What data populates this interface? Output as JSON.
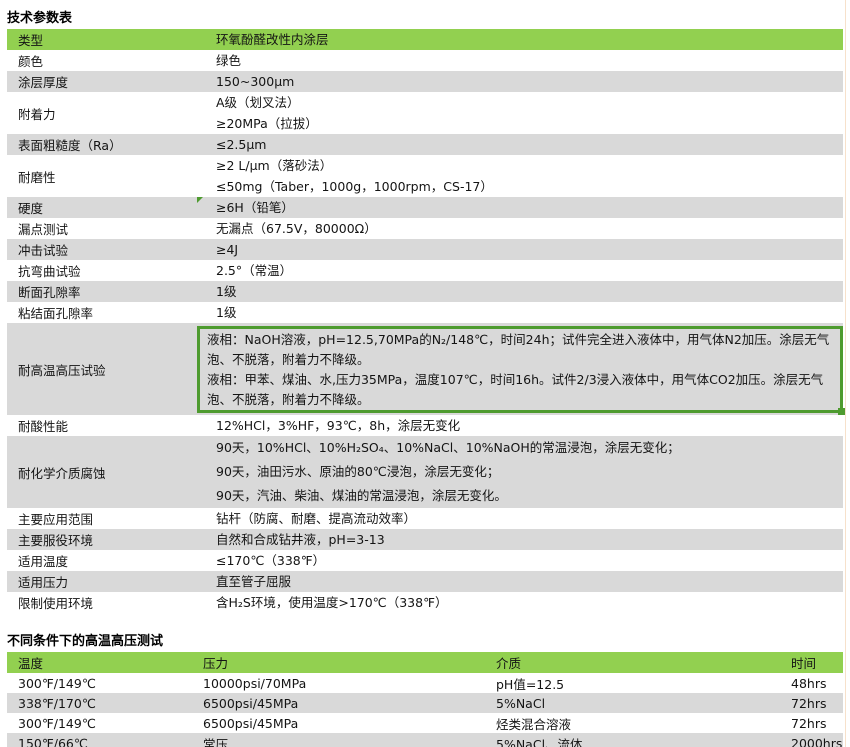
{
  "titles": {
    "spec": "技术参数表",
    "hthp": "不同条件下的高温高压测试"
  },
  "colors": {
    "header_green": "#92D050",
    "stripe_gray": "#D9D9D9",
    "highlight_border_green": "#4E9B2F",
    "page_break_line": "#F7E1CB",
    "text": "#141414"
  },
  "icons": {
    "comment_marker": "green-corner-triangle",
    "selection_handle": "green-square"
  },
  "spec_table": {
    "rows": [
      {
        "label": "类型",
        "lines": [
          "环氧酚醛改性内涂层"
        ]
      },
      {
        "label": "颜色",
        "lines": [
          "绿色"
        ]
      },
      {
        "label": "涂层厚度",
        "lines": [
          "150~300μm"
        ]
      },
      {
        "label": "附着力",
        "lines": [
          "A级（划叉法）",
          "≥20MPa（拉拔）"
        ]
      },
      {
        "label": "表面粗糙度（Ra）",
        "lines": [
          "≤2.5μm"
        ]
      },
      {
        "label": "耐磨性",
        "lines": [
          "≥2 L/μm（落砂法）",
          "≤50mg（Taber，1000g，1000rpm，CS-17）"
        ]
      },
      {
        "label": "硬度",
        "lines": [
          "≥6H（铅笔）"
        ]
      },
      {
        "label": "漏点测试",
        "lines": [
          "无漏点（67.5V，80000Ω）"
        ]
      },
      {
        "label": "冲击试验",
        "lines": [
          "≥4J"
        ]
      },
      {
        "label": "抗弯曲试验",
        "lines": [
          "2.5°（常温）"
        ]
      },
      {
        "label": "断面孔隙率",
        "lines": [
          "1级"
        ]
      },
      {
        "label": "粘结面孔隙率",
        "lines": [
          "1级"
        ]
      },
      {
        "label": "耐高温高压试验",
        "lines": [
          "液相：NaOH溶液，pH=12.5,70MPa的N₂/148℃，时间24h；试件完全进入液体中，用气体N2加压。涂层无气泡、不脱落，附着力不降级。",
          "液相：甲苯、煤油、水,压力35MPa，温度107℃，时间16h。试件2/3浸入液体中，用气体CO2加压。涂层无气泡、不脱落，附着力不降级。"
        ]
      },
      {
        "label": "耐酸性能",
        "lines": [
          "12%HCl，3%HF，93℃，8h，涂层无变化"
        ]
      },
      {
        "label": "耐化学介质腐蚀",
        "lines": [
          "90天，10%HCl、10%H₂SO₄、10%NaCl、10%NaOH的常温浸泡，涂层无变化；",
          "90天，油田污水、原油的80℃浸泡，涂层无变化；",
          "90天，汽油、柴油、煤油的常温浸泡，涂层无变化。"
        ]
      },
      {
        "label": "主要应用范围",
        "lines": [
          "钻杆（防腐、耐磨、提高流动效率）"
        ]
      },
      {
        "label": "主要服役环境",
        "lines": [
          "自然和合成钻井液，pH=3-13"
        ]
      },
      {
        "label": "适用温度",
        "lines": [
          "≤170℃（338℉）"
        ]
      },
      {
        "label": "适用压力",
        "lines": [
          "直至管子屈服"
        ]
      },
      {
        "label": "限制使用环境",
        "lines": [
          "含H₂S环境，使用温度>170℃（338℉）"
        ]
      }
    ]
  },
  "hthp_table": {
    "headers": [
      "温度",
      "压力",
      "介质",
      "时间"
    ],
    "rows": [
      [
        "300℉/149℃",
        "10000psi/70MPa",
        "pH值=12.5",
        "48hrs"
      ],
      [
        "338℉/170℃",
        "6500psi/45MPa",
        "5%NaCl",
        "72hrs"
      ],
      [
        "300℉/149℃",
        "6500psi/45MPa",
        "烃类混合溶液",
        "72hrs"
      ],
      [
        "150℉/66℃",
        "常压",
        "5%NaCl、流体",
        "2000hrs"
      ]
    ]
  }
}
